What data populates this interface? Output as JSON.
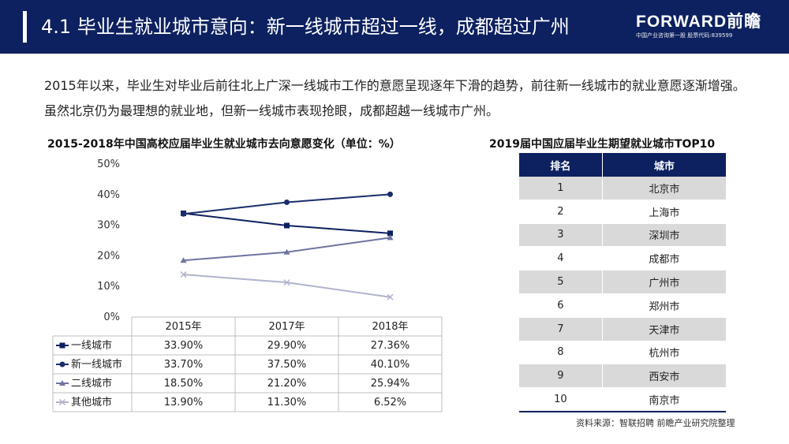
{
  "header": {
    "title": "4.1 毕业生就业城市意向：新一线城市超过一线，成都超过广州",
    "logo_text": "FORWARD前瞻",
    "logo_sub": "中国产业咨询第一股 股票代码:839599"
  },
  "intro": "2015年以来，毕业生对毕业后前往北上广深一线城市工作的意愿呈现逐年下滑的趋势，前往新一线城市的就业意愿逐渐增强。虽然北京仍为最理想的就业地，但新一线城市表现抢眼，成都超越一线城市广州。",
  "chart_data": {
    "type": "line",
    "title": "2015-2018年中国高校应届毕业生就业城市去向意愿变化（单位：%）",
    "categories": [
      "2015年",
      "2017年",
      "2018年"
    ],
    "ylim": [
      0,
      50
    ],
    "yticks": [
      "0%",
      "10%",
      "20%",
      "30%",
      "40%",
      "50%"
    ],
    "series": [
      {
        "name": "一线城市",
        "values": [
          33.9,
          29.9,
          27.36
        ],
        "labels": [
          "33.90%",
          "29.90%",
          "27.36%"
        ],
        "color": "#0d2160",
        "marker": "square"
      },
      {
        "name": "新一线城市",
        "values": [
          33.7,
          37.5,
          40.1
        ],
        "labels": [
          "33.70%",
          "37.50%",
          "40.10%"
        ],
        "color": "#1a2d6b",
        "marker": "circle"
      },
      {
        "name": "二线城市",
        "values": [
          18.5,
          21.2,
          25.94
        ],
        "labels": [
          "18.50%",
          "21.20%",
          "25.94%"
        ],
        "color": "#6e74a0",
        "marker": "triangle"
      },
      {
        "name": "其他城市",
        "values": [
          13.9,
          11.3,
          6.52
        ],
        "labels": [
          "13.90%",
          "11.30%",
          "6.52%"
        ],
        "color": "#b0b3cc",
        "marker": "x"
      }
    ]
  },
  "top10": {
    "title": "2019届中国应届毕业生期望就业城市TOP10",
    "headers": [
      "排名",
      "城市"
    ],
    "rows": [
      [
        "1",
        "北京市"
      ],
      [
        "2",
        "上海市"
      ],
      [
        "3",
        "深圳市"
      ],
      [
        "4",
        "成都市"
      ],
      [
        "5",
        "广州市"
      ],
      [
        "6",
        "郑州市"
      ],
      [
        "7",
        "天津市"
      ],
      [
        "8",
        "杭州市"
      ],
      [
        "9",
        "西安市"
      ],
      [
        "10",
        "南京市"
      ]
    ]
  },
  "source": "资料来源：智联招聘 前瞻产业研究院整理",
  "colors": {
    "primary": "#0d2160",
    "row_alt": "#d9d9d9"
  }
}
